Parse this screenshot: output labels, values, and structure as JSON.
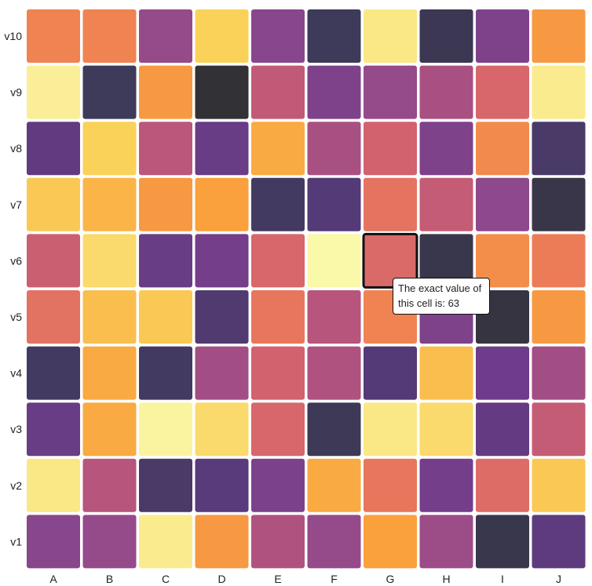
{
  "chart_data": {
    "type": "heatmap",
    "x_categories": [
      "A",
      "B",
      "C",
      "D",
      "E",
      "F",
      "G",
      "H",
      "I",
      "J"
    ],
    "y_categories": [
      "v1",
      "v2",
      "v3",
      "v4",
      "v5",
      "v6",
      "v7",
      "v8",
      "v9",
      "v10"
    ],
    "color_scale": "inferno",
    "value_range": [
      0,
      100
    ],
    "rows": [
      {
        "y": "v10",
        "values": [
          72,
          72,
          42,
          90,
          38,
          10,
          95,
          8,
          35,
          78
        ]
      },
      {
        "y": "v9",
        "values": [
          97,
          10,
          78,
          0,
          55,
          35,
          42,
          48,
          62,
          96
        ]
      },
      {
        "y": "v8",
        "values": [
          25,
          90,
          53,
          28,
          82,
          48,
          60,
          35,
          74,
          15
        ]
      },
      {
        "y": "v7",
        "values": [
          88,
          84,
          78,
          80,
          12,
          20,
          67,
          56,
          40,
          5
        ]
      },
      {
        "y": "v6",
        "values": [
          58,
          92,
          28,
          32,
          62,
          99,
          63,
          6,
          75,
          70
        ]
      },
      {
        "y": "v5",
        "values": [
          66,
          86,
          88,
          18,
          68,
          52,
          72,
          35,
          3,
          78
        ]
      },
      {
        "y": "v4",
        "values": [
          12,
          82,
          12,
          46,
          60,
          50,
          20,
          86,
          30,
          46
        ]
      },
      {
        "y": "v3",
        "values": [
          28,
          82,
          98,
          92,
          62,
          9,
          95,
          92,
          26,
          56
        ]
      },
      {
        "y": "v2",
        "values": [
          95,
          52,
          15,
          22,
          34,
          82,
          68,
          32,
          64,
          88
        ]
      },
      {
        "y": "v1",
        "values": [
          38,
          42,
          96,
          78,
          50,
          42,
          80,
          44,
          6,
          24
        ]
      }
    ],
    "highlighted_cell": {
      "x": "G",
      "y": "v6",
      "value": 63
    }
  },
  "tooltip": {
    "line1": "The exact value of",
    "line2": "this cell is: 63"
  }
}
